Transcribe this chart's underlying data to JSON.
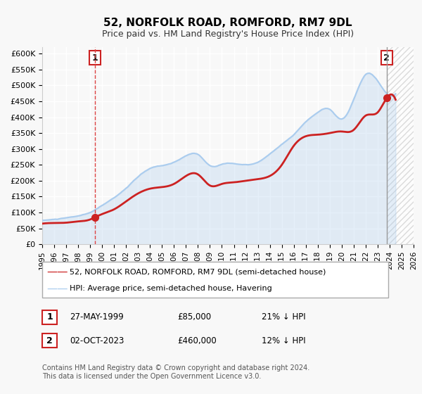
{
  "title": "52, NORFOLK ROAD, ROMFORD, RM7 9DL",
  "subtitle": "Price paid vs. HM Land Registry's House Price Index (HPI)",
  "xlabel": "",
  "ylabel": "",
  "ylim": [
    0,
    620000
  ],
  "xlim": [
    1995,
    2026
  ],
  "yticks": [
    0,
    50000,
    100000,
    150000,
    200000,
    250000,
    300000,
    350000,
    400000,
    450000,
    500000,
    550000,
    600000
  ],
  "ytick_labels": [
    "£0",
    "£50K",
    "£100K",
    "£150K",
    "£200K",
    "£250K",
    "£300K",
    "£350K",
    "£400K",
    "£450K",
    "£500K",
    "£550K",
    "£600K"
  ],
  "xticks": [
    1995,
    1996,
    1997,
    1998,
    1999,
    2000,
    2001,
    2002,
    2003,
    2004,
    2005,
    2006,
    2007,
    2008,
    2009,
    2010,
    2011,
    2012,
    2013,
    2014,
    2015,
    2016,
    2017,
    2018,
    2019,
    2020,
    2021,
    2022,
    2023,
    2024,
    2025,
    2026
  ],
  "hpi_color": "#aaccee",
  "price_color": "#cc2222",
  "marker1_color": "#cc2222",
  "marker2_color": "#cc2222",
  "vline1_color": "#dd4444",
  "vline2_color": "#888888",
  "marker1_x": 1999.4,
  "marker1_y": 85000,
  "marker2_x": 2023.75,
  "marker2_y": 460000,
  "vline1_x": 1999.4,
  "vline2_x": 2023.75,
  "label1": "1",
  "label2": "2",
  "legend_line1": "52, NORFOLK ROAD, ROMFORD, RM7 9DL (semi-detached house)",
  "legend_line2": "HPI: Average price, semi-detached house, Havering",
  "annotation1_date": "27-MAY-1999",
  "annotation1_price": "£85,000",
  "annotation1_hpi": "21% ↓ HPI",
  "annotation2_date": "02-OCT-2023",
  "annotation2_price": "£460,000",
  "annotation2_hpi": "12% ↓ HPI",
  "footnote": "Contains HM Land Registry data © Crown copyright and database right 2024.\nThis data is licensed under the Open Government Licence v3.0.",
  "bg_color": "#f8f8f8",
  "grid_color": "#ffffff",
  "hatch_color": "#cccccc"
}
